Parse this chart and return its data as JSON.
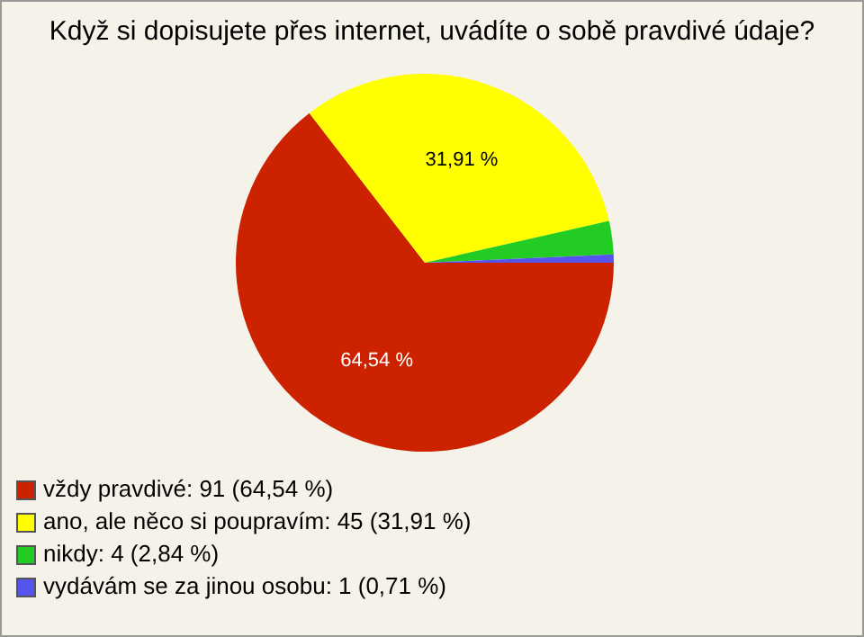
{
  "chart_data": {
    "type": "pie",
    "title": "Když si dopisujete přes internet, uvádíte o sobě pravdivé údaje?",
    "categories": [
      "vždy pravdivé: 91 (64,54 %)",
      "ano, ale něco si poupravím: 45 (31,91 %)",
      "nikdy: 4 (2,84 %)",
      "vydávám se za jinou osobu: 1 (0,71 %)"
    ],
    "values": [
      64.54,
      31.91,
      2.84,
      0.71
    ],
    "colors": [
      "#cc2200",
      "#ffff00",
      "#22cc22",
      "#5555ee"
    ],
    "value_labels": [
      "64,54 %",
      "31,91 %",
      null,
      null
    ],
    "legend": "bottom left"
  }
}
